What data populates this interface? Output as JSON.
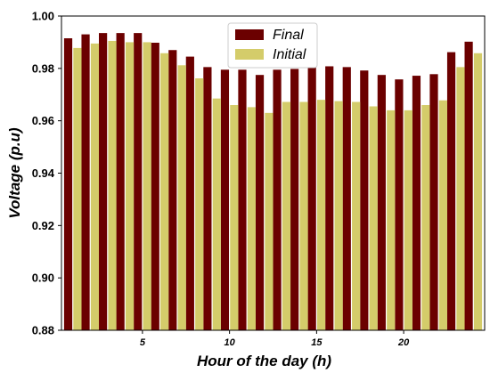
{
  "chart_data": {
    "type": "bar",
    "xlabel": "Hour of the day (h)",
    "ylabel": "Voltage (p.u)",
    "ylim": [
      0.88,
      1.0
    ],
    "yticks": [
      "0.88",
      "0.90",
      "0.92",
      "0.94",
      "0.96",
      "0.98",
      "1.00"
    ],
    "xticks": [
      "5",
      "10",
      "15",
      "20"
    ],
    "legend_position": "top-center",
    "x": [
      1,
      2,
      3,
      4,
      5,
      6,
      7,
      8,
      9,
      10,
      11,
      12,
      13,
      14,
      15,
      16,
      17,
      18,
      19,
      20,
      21,
      22,
      23,
      24
    ],
    "series": [
      {
        "name": "Final",
        "color": "#6b0000",
        "values": [
          0.9915,
          0.993,
          0.9935,
          0.9935,
          0.9935,
          0.9898,
          0.987,
          0.9845,
          0.9805,
          0.9795,
          0.9795,
          0.9775,
          0.9795,
          0.9798,
          0.9805,
          0.9808,
          0.9805,
          0.9792,
          0.9775,
          0.9758,
          0.9772,
          0.9778,
          0.9862,
          0.9902
        ]
      },
      {
        "name": "Initial",
        "color": "#d4cc6a",
        "values": [
          0.9878,
          0.9895,
          0.9905,
          0.99,
          0.99,
          0.9858,
          0.9812,
          0.9762,
          0.9685,
          0.966,
          0.9652,
          0.963,
          0.9672,
          0.9672,
          0.968,
          0.9675,
          0.9672,
          0.9655,
          0.964,
          0.964,
          0.966,
          0.9678,
          0.9805,
          0.9858
        ]
      }
    ]
  }
}
